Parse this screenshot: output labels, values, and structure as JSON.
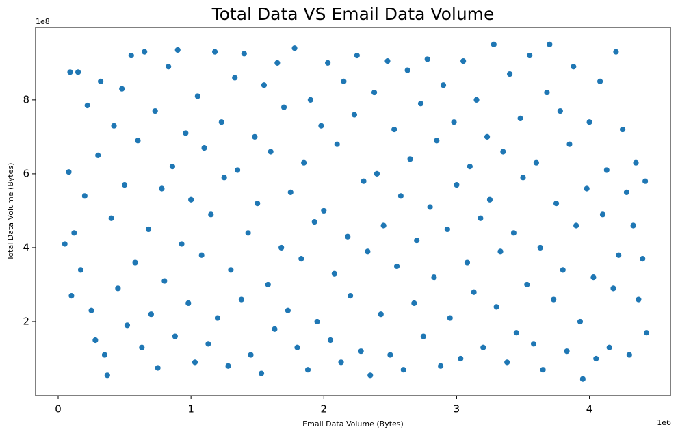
{
  "chart_data": {
    "type": "scatter",
    "title": "Total Data VS Email Data Volume",
    "x_label": "Email Data Volume (Bytes)",
    "y_label": "Total Data Volume (Bytes)",
    "x_offset": "1e6",
    "y_offset": "1e8",
    "color": "#1f77b4",
    "xlim": [
      -0.17,
      4.61
    ],
    "ylim": [
      0,
      9.96
    ],
    "xticks": [
      0,
      1,
      2,
      3,
      4
    ],
    "yticks": [
      2,
      4,
      6,
      8
    ],
    "x": [
      0.05,
      0.08,
      0.09,
      0.1,
      0.12,
      0.15,
      0.17,
      0.2,
      0.22,
      0.25,
      0.28,
      0.3,
      0.32,
      0.35,
      0.37,
      0.4,
      0.42,
      0.45,
      0.48,
      0.5,
      0.52,
      0.55,
      0.58,
      0.6,
      0.63,
      0.65,
      0.68,
      0.7,
      0.73,
      0.75,
      0.78,
      0.8,
      0.83,
      0.86,
      0.88,
      0.9,
      0.93,
      0.96,
      0.98,
      1.0,
      1.03,
      1.05,
      1.08,
      1.1,
      1.13,
      1.15,
      1.18,
      1.2,
      1.23,
      1.25,
      1.28,
      1.3,
      1.33,
      1.35,
      1.38,
      1.4,
      1.43,
      1.45,
      1.48,
      1.5,
      1.53,
      1.55,
      1.58,
      1.6,
      1.63,
      1.65,
      1.68,
      1.7,
      1.73,
      1.75,
      1.78,
      1.8,
      1.83,
      1.85,
      1.88,
      1.9,
      1.93,
      1.95,
      1.98,
      2.0,
      2.03,
      2.05,
      2.08,
      2.1,
      2.13,
      2.15,
      2.18,
      2.2,
      2.23,
      2.25,
      2.28,
      2.3,
      2.33,
      2.35,
      2.38,
      2.4,
      2.43,
      2.45,
      2.48,
      2.5,
      2.53,
      2.55,
      2.58,
      2.6,
      2.63,
      2.65,
      2.68,
      2.7,
      2.73,
      2.75,
      2.78,
      2.8,
      2.83,
      2.85,
      2.88,
      2.9,
      2.93,
      2.95,
      2.98,
      3.0,
      3.03,
      3.05,
      3.08,
      3.1,
      3.13,
      3.15,
      3.18,
      3.2,
      3.23,
      3.25,
      3.28,
      3.3,
      3.33,
      3.35,
      3.38,
      3.4,
      3.43,
      3.45,
      3.48,
      3.5,
      3.53,
      3.55,
      3.58,
      3.6,
      3.63,
      3.65,
      3.68,
      3.7,
      3.73,
      3.75,
      3.78,
      3.8,
      3.83,
      3.85,
      3.88,
      3.9,
      3.93,
      3.95,
      3.98,
      4.0,
      4.03,
      4.05,
      4.08,
      4.1,
      4.13,
      4.15,
      4.18,
      4.2,
      4.22,
      4.25,
      4.28,
      4.3,
      4.33,
      4.35,
      4.37,
      4.4,
      4.42,
      4.43
    ],
    "y": [
      4.1,
      6.05,
      8.75,
      2.7,
      4.4,
      8.75,
      3.4,
      5.4,
      7.85,
      2.3,
      1.5,
      6.5,
      8.5,
      1.1,
      0.55,
      4.8,
      7.3,
      2.9,
      8.3,
      5.7,
      1.9,
      9.2,
      3.6,
      6.9,
      1.3,
      9.3,
      4.5,
      2.2,
      7.7,
      0.75,
      5.6,
      3.1,
      8.9,
      6.2,
      1.6,
      9.35,
      4.1,
      7.1,
      2.5,
      5.3,
      0.9,
      8.1,
      3.8,
      6.7,
      1.4,
      4.9,
      9.3,
      2.1,
      7.4,
      5.9,
      0.8,
      3.4,
      8.6,
      6.1,
      2.6,
      9.25,
      4.4,
      1.1,
      7.0,
      5.2,
      0.6,
      8.4,
      3.0,
      6.6,
      1.8,
      9.0,
      4.0,
      7.8,
      2.3,
      5.5,
      9.4,
      1.3,
      3.7,
      6.3,
      0.7,
      8.0,
      4.7,
      2.0,
      7.3,
      5.0,
      9.0,
      1.5,
      3.3,
      6.8,
      0.9,
      8.5,
      4.3,
      2.7,
      7.6,
      9.2,
      1.2,
      5.8,
      3.9,
      0.55,
      8.2,
      6.0,
      2.2,
      4.6,
      9.05,
      1.1,
      7.2,
      3.5,
      5.4,
      0.7,
      8.8,
      6.4,
      2.5,
      4.2,
      7.9,
      1.6,
      9.1,
      5.1,
      3.2,
      6.9,
      0.8,
      8.4,
      4.5,
      2.1,
      7.4,
      5.7,
      1.0,
      9.05,
      3.6,
      6.2,
      2.8,
      8.0,
      4.8,
      1.3,
      7.0,
      5.3,
      9.5,
      2.4,
      3.9,
      6.6,
      0.9,
      8.7,
      4.4,
      1.7,
      7.5,
      5.9,
      3.0,
      9.2,
      1.4,
      6.3,
      4.0,
      0.7,
      8.2,
      9.5,
      2.6,
      5.2,
      7.7,
      3.4,
      1.2,
      6.8,
      8.9,
      4.6,
      2.0,
      0.45,
      5.6,
      7.4,
      3.2,
      1.0,
      8.5,
      4.9,
      6.1,
      1.3,
      2.9,
      9.3,
      3.8,
      7.2,
      5.5,
      1.1,
      4.6,
      6.3,
      2.6,
      3.7,
      5.8,
      1.7
    ]
  }
}
